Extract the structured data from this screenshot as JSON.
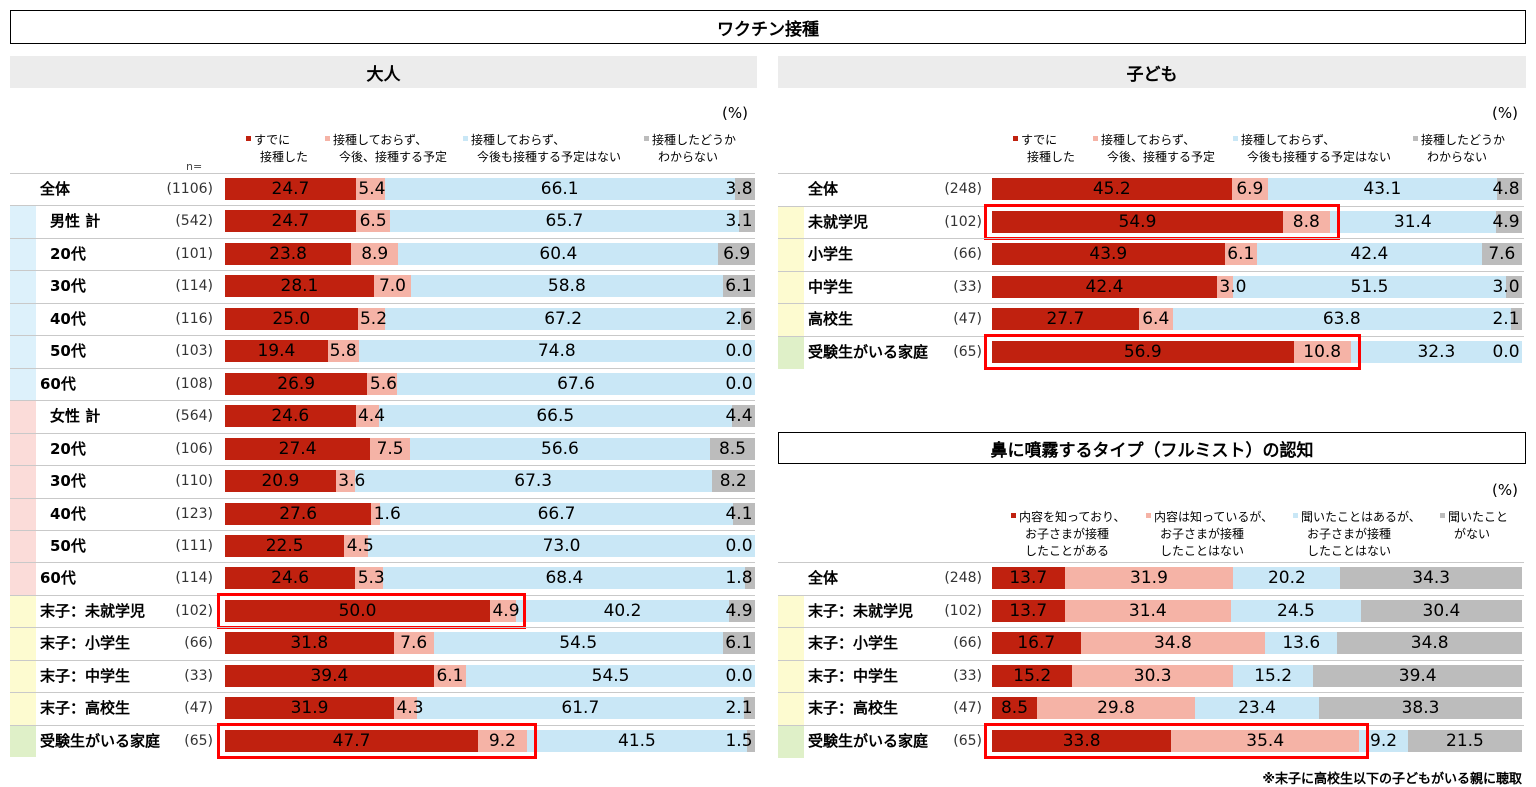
{
  "title": "ワクチン接種",
  "footnote": "※末子に高校生以下の子どもがいる親に聴取",
  "colors": {
    "seg1": "#c0210f",
    "seg2": "#f5b3a6",
    "seg3": "#c9e7f6",
    "seg4": "#bcbcbc",
    "stripe_blue": "#ddf1fb",
    "stripe_pink": "#fbdcd9",
    "stripe_yellow": "#fdfbd0",
    "stripe_green": "#dff0c8",
    "highlight": "#ff0000",
    "section_bg": "#ececec"
  },
  "chart_data": [
    {
      "type": "bar",
      "stacked": "100% horizontal",
      "title": "大人",
      "unit": "(%)",
      "n_label": "n=",
      "series": [
        {
          "name": "すでに接種した",
          "legend_lines": [
            "すでに",
            "接種した"
          ]
        },
        {
          "name": "接種しておらず、今後、接種する予定",
          "legend_lines": [
            "接種しておらず、",
            "今後、接種する予定"
          ]
        },
        {
          "name": "接種しておらず、今後も接種する予定はない",
          "legend_lines": [
            "接種しておらず、",
            "今後も接種する予定はない"
          ]
        },
        {
          "name": "接種したどうかわからない",
          "legend_lines": [
            "接種したどうか",
            "わからない"
          ]
        }
      ],
      "rows": [
        {
          "label": "全体",
          "n": "(1106)",
          "values": [
            24.7,
            5.4,
            66.1,
            3.8
          ],
          "group": "none",
          "highlight": false
        },
        {
          "label": "男性 計",
          "n": "(542)",
          "values": [
            24.7,
            6.5,
            65.7,
            3.1
          ],
          "group": "blue",
          "highlight": false
        },
        {
          "label": "20代",
          "n": "(101)",
          "values": [
            23.8,
            8.9,
            60.4,
            6.9
          ],
          "group": "blue",
          "highlight": false
        },
        {
          "label": "30代",
          "n": "(114)",
          "values": [
            28.1,
            7.0,
            58.8,
            6.1
          ],
          "group": "blue",
          "highlight": false
        },
        {
          "label": "40代",
          "n": "(116)",
          "values": [
            25.0,
            5.2,
            67.2,
            2.6
          ],
          "group": "blue",
          "highlight": false
        },
        {
          "label": "50代",
          "n": "(103)",
          "values": [
            19.4,
            5.8,
            74.8,
            0.0
          ],
          "group": "blue",
          "highlight": false
        },
        {
          "label": "60代",
          "n": "(108)",
          "values": [
            26.9,
            5.6,
            67.6,
            0.0
          ],
          "group": "blue",
          "highlight": false
        },
        {
          "label": "女性 計",
          "n": "(564)",
          "values": [
            24.6,
            4.4,
            66.5,
            4.4
          ],
          "group": "pink",
          "highlight": false
        },
        {
          "label": "20代",
          "n": "(106)",
          "values": [
            27.4,
            7.5,
            56.6,
            8.5
          ],
          "group": "pink",
          "highlight": false
        },
        {
          "label": "30代",
          "n": "(110)",
          "values": [
            20.9,
            3.6,
            67.3,
            8.2
          ],
          "group": "pink",
          "highlight": false
        },
        {
          "label": "40代",
          "n": "(123)",
          "values": [
            27.6,
            1.6,
            66.7,
            4.1
          ],
          "group": "pink",
          "highlight": false
        },
        {
          "label": "50代",
          "n": "(111)",
          "values": [
            22.5,
            4.5,
            73.0,
            0.0
          ],
          "group": "pink",
          "highlight": false
        },
        {
          "label": "60代",
          "n": "(114)",
          "values": [
            24.6,
            5.3,
            68.4,
            1.8
          ],
          "group": "pink",
          "highlight": false
        },
        {
          "label": "末子：未就学児",
          "n": "(102)",
          "values": [
            50.0,
            4.9,
            40.2,
            4.9
          ],
          "group": "yellow",
          "highlight": true
        },
        {
          "label": "末子：小学生",
          "n": "(66)",
          "values": [
            31.8,
            7.6,
            54.5,
            6.1
          ],
          "group": "yellow",
          "highlight": false
        },
        {
          "label": "末子：中学生",
          "n": "(33)",
          "values": [
            39.4,
            6.1,
            54.5,
            0.0
          ],
          "group": "yellow",
          "highlight": false
        },
        {
          "label": "末子：高校生",
          "n": "(47)",
          "values": [
            31.9,
            4.3,
            61.7,
            2.1
          ],
          "group": "yellow",
          "highlight": false
        },
        {
          "label": "受験生がいる家庭",
          "n": "(65)",
          "values": [
            47.7,
            9.2,
            41.5,
            1.5
          ],
          "group": "green",
          "highlight": true
        }
      ]
    },
    {
      "type": "bar",
      "stacked": "100% horizontal",
      "title": "子ども",
      "unit": "(%)",
      "series": [
        {
          "name": "すでに接種した",
          "legend_lines": [
            "すでに",
            "接種した"
          ]
        },
        {
          "name": "接種しておらず、今後、接種する予定",
          "legend_lines": [
            "接種しておらず、",
            "今後、接種する予定"
          ]
        },
        {
          "name": "接種しておらず、今後も接種する予定はない",
          "legend_lines": [
            "接種しておらず、",
            "今後も接種する予定はない"
          ]
        },
        {
          "name": "接種したどうかわからない",
          "legend_lines": [
            "接種したどうか",
            "わからない"
          ]
        }
      ],
      "rows": [
        {
          "label": "全体",
          "n": "(248)",
          "values": [
            45.2,
            6.9,
            43.1,
            4.8
          ],
          "group": "none",
          "highlight": false
        },
        {
          "label": "未就学児",
          "n": "(102)",
          "values": [
            54.9,
            8.8,
            31.4,
            4.9
          ],
          "group": "yellow",
          "highlight": true
        },
        {
          "label": "小学生",
          "n": "(66)",
          "values": [
            43.9,
            6.1,
            42.4,
            7.6
          ],
          "group": "yellow",
          "highlight": false
        },
        {
          "label": "中学生",
          "n": "(33)",
          "values": [
            42.4,
            3.0,
            51.5,
            3.0
          ],
          "group": "yellow",
          "highlight": false
        },
        {
          "label": "高校生",
          "n": "(47)",
          "values": [
            27.7,
            6.4,
            63.8,
            2.1
          ],
          "group": "yellow",
          "highlight": false
        },
        {
          "label": "受験生がいる家庭",
          "n": "(65)",
          "values": [
            56.9,
            10.8,
            32.3,
            0.0
          ],
          "group": "green",
          "highlight": true
        }
      ]
    },
    {
      "type": "bar",
      "stacked": "100% horizontal",
      "title": "鼻に噴霧するタイプ（フルミスト）の認知",
      "unit": "(%)",
      "series": [
        {
          "name": "内容を知っており、お子さまが接種したことがある",
          "legend_lines": [
            "内容を知っており、",
            "お子さまが接種",
            "したことがある"
          ]
        },
        {
          "name": "内容は知っているが、お子さまが接種したことはない",
          "legend_lines": [
            "内容は知っているが、",
            "お子さまが接種",
            "したことはない"
          ]
        },
        {
          "name": "聞いたことはあるが、お子さまが接種したことはない",
          "legend_lines": [
            "聞いたことはあるが、",
            "お子さまが接種",
            "したことはない"
          ]
        },
        {
          "name": "聞いたことがない",
          "legend_lines": [
            "聞いたこと",
            "がない"
          ]
        }
      ],
      "rows": [
        {
          "label": "全体",
          "n": "(248)",
          "values": [
            13.7,
            31.9,
            20.2,
            34.3
          ],
          "group": "none",
          "highlight": false
        },
        {
          "label": "末子：未就学児",
          "n": "(102)",
          "values": [
            13.7,
            31.4,
            24.5,
            30.4
          ],
          "group": "yellow",
          "highlight": false
        },
        {
          "label": "末子：小学生",
          "n": "(66)",
          "values": [
            16.7,
            34.8,
            13.6,
            34.8
          ],
          "group": "yellow",
          "highlight": false
        },
        {
          "label": "末子：中学生",
          "n": "(33)",
          "values": [
            15.2,
            30.3,
            15.2,
            39.4
          ],
          "group": "yellow",
          "highlight": false
        },
        {
          "label": "末子：高校生",
          "n": "(47)",
          "values": [
            8.5,
            29.8,
            23.4,
            38.3
          ],
          "group": "yellow",
          "highlight": false
        },
        {
          "label": "受験生がいる家庭",
          "n": "(65)",
          "values": [
            33.8,
            35.4,
            9.2,
            21.5
          ],
          "group": "green",
          "highlight": true
        }
      ]
    }
  ]
}
